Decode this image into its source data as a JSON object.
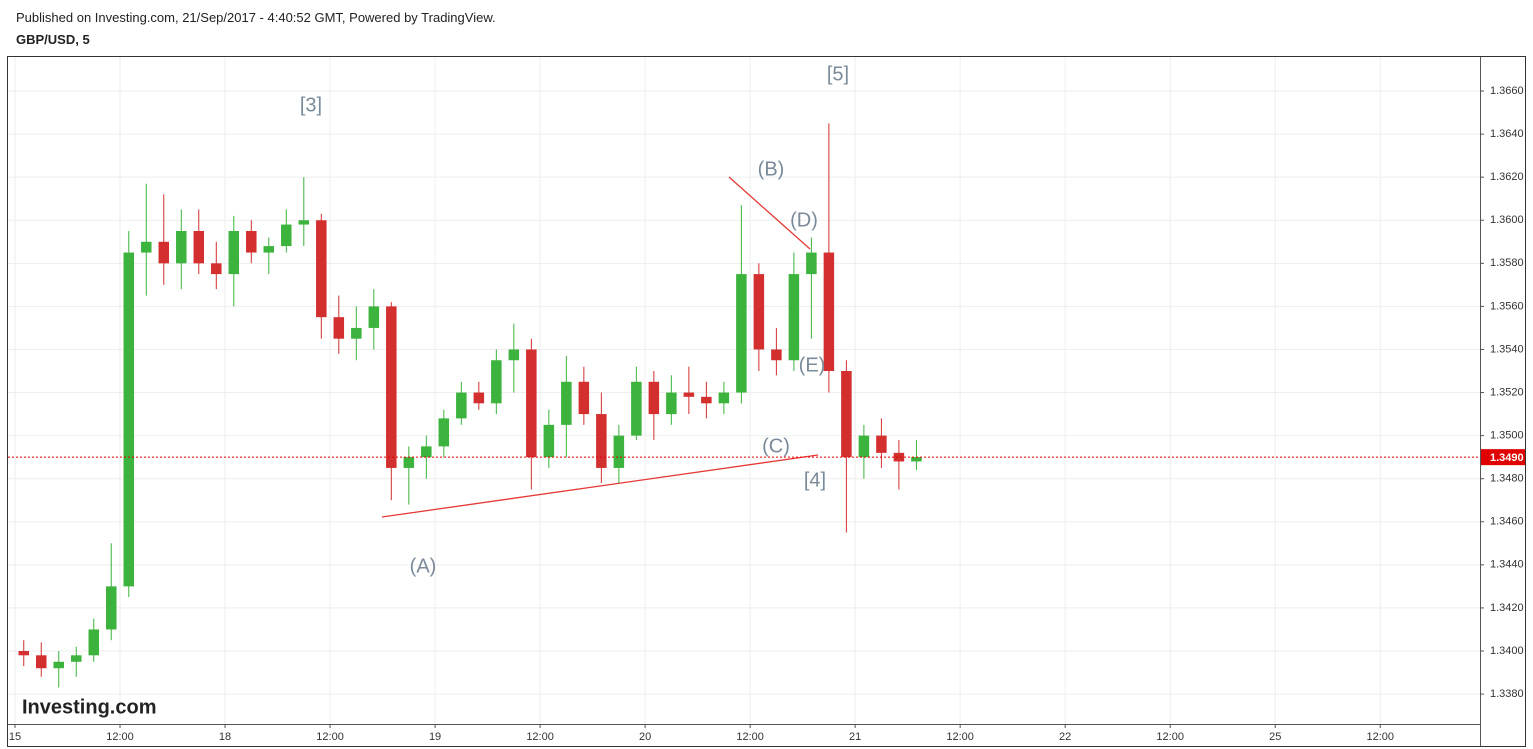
{
  "header": "Published on Investing.com, 21/Sep/2017 - 4:40:52 GMT, Powered by TradingView.",
  "chart_data": {
    "type": "candlestick",
    "title": "GBP/USD, 5",
    "watermark": "Investing.com",
    "up_color": "#3cb33c",
    "down_color": "#d32f2f",
    "grid": true,
    "x": [
      1,
      3,
      5,
      7,
      9,
      11,
      13,
      15,
      17,
      19,
      21,
      23,
      25,
      27,
      29,
      31,
      33,
      35,
      37,
      39,
      41,
      43,
      45,
      47,
      49,
      51,
      53,
      55,
      57,
      59,
      61,
      63,
      65,
      67,
      69,
      71,
      73,
      75,
      77,
      79,
      81,
      83,
      85,
      87,
      89,
      91,
      93,
      95,
      97,
      99,
      101,
      103
    ],
    "open": [
      1.34,
      1.3398,
      1.3392,
      1.3395,
      1.3398,
      1.341,
      1.343,
      1.3585,
      1.359,
      1.358,
      1.3595,
      1.358,
      1.3575,
      1.3595,
      1.3585,
      1.3588,
      1.3598,
      1.36,
      1.3555,
      1.3545,
      1.355,
      1.356,
      1.3485,
      1.349,
      1.3495,
      1.3508,
      1.352,
      1.3515,
      1.3535,
      1.354,
      1.349,
      1.3505,
      1.3525,
      1.351,
      1.3485,
      1.35,
      1.3525,
      1.351,
      1.352,
      1.3518,
      1.3515,
      1.352,
      1.3575,
      1.354,
      1.3535,
      1.3575,
      1.3585,
      1.353,
      1.349,
      1.35,
      1.3492,
      1.3488
    ],
    "high": [
      1.3405,
      1.3404,
      1.34,
      1.3402,
      1.3415,
      1.345,
      1.3595,
      1.3617,
      1.3612,
      1.3605,
      1.3605,
      1.359,
      1.3602,
      1.36,
      1.3592,
      1.3605,
      1.362,
      1.3603,
      1.3565,
      1.356,
      1.3568,
      1.3562,
      1.3495,
      1.35,
      1.3512,
      1.3525,
      1.3525,
      1.354,
      1.3552,
      1.3545,
      1.3512,
      1.3537,
      1.3532,
      1.352,
      1.3505,
      1.3532,
      1.353,
      1.3528,
      1.3532,
      1.3525,
      1.3525,
      1.3607,
      1.358,
      1.355,
      1.3585,
      1.3592,
      1.3645,
      1.3535,
      1.3505,
      1.3508,
      1.3498,
      1.3498
    ],
    "low": [
      1.3393,
      1.3388,
      1.3383,
      1.3388,
      1.3395,
      1.3405,
      1.3425,
      1.3565,
      1.357,
      1.3568,
      1.3575,
      1.3568,
      1.356,
      1.358,
      1.3575,
      1.3585,
      1.3588,
      1.3545,
      1.3538,
      1.3535,
      1.354,
      1.347,
      1.3468,
      1.348,
      1.349,
      1.3505,
      1.3512,
      1.351,
      1.352,
      1.3475,
      1.3485,
      1.349,
      1.3505,
      1.3478,
      1.3478,
      1.3498,
      1.3498,
      1.3505,
      1.351,
      1.3508,
      1.351,
      1.3515,
      1.353,
      1.3528,
      1.353,
      1.3545,
      1.352,
      1.3455,
      1.348,
      1.3485,
      1.3475,
      1.3484
    ],
    "close": [
      1.3398,
      1.3392,
      1.3395,
      1.3398,
      1.341,
      1.343,
      1.3585,
      1.359,
      1.358,
      1.3595,
      1.358,
      1.3575,
      1.3595,
      1.3585,
      1.3588,
      1.3598,
      1.36,
      1.3555,
      1.3545,
      1.355,
      1.356,
      1.3485,
      1.349,
      1.3495,
      1.3508,
      1.352,
      1.3515,
      1.3535,
      1.354,
      1.349,
      1.3505,
      1.3525,
      1.351,
      1.3485,
      1.35,
      1.3525,
      1.351,
      1.352,
      1.3518,
      1.3515,
      1.352,
      1.3575,
      1.354,
      1.3535,
      1.3575,
      1.3585,
      1.353,
      1.349,
      1.35,
      1.3492,
      1.3488,
      1.349
    ],
    "xlim": [
      -0.8,
      167.4
    ],
    "xticks": [
      {
        "value": 0,
        "label": "15"
      },
      {
        "value": 12,
        "label": "12:00"
      },
      {
        "value": 24,
        "label": "18"
      },
      {
        "value": 36,
        "label": "12:00"
      },
      {
        "value": 48,
        "label": "19"
      },
      {
        "value": 60,
        "label": "12:00"
      },
      {
        "value": 72,
        "label": "20"
      },
      {
        "value": 84,
        "label": "12:00"
      },
      {
        "value": 96,
        "label": "21"
      },
      {
        "value": 108,
        "label": "12:00"
      },
      {
        "value": 120,
        "label": "22"
      },
      {
        "value": 132,
        "label": "12:00"
      },
      {
        "value": 144,
        "label": "25"
      },
      {
        "value": 156,
        "label": "12:00"
      }
    ],
    "ylim": [
      1.33661,
      1.36758
    ],
    "yticks": [
      {
        "value": 1.338,
        "label": "1.3380"
      },
      {
        "value": 1.34,
        "label": "1.3400"
      },
      {
        "value": 1.342,
        "label": "1.3420"
      },
      {
        "value": 1.344,
        "label": "1.3440"
      },
      {
        "value": 1.346,
        "label": "1.3460"
      },
      {
        "value": 1.348,
        "label": "1.3480"
      },
      {
        "value": 1.35,
        "label": "1.3500"
      },
      {
        "value": 1.352,
        "label": "1.3520"
      },
      {
        "value": 1.354,
        "label": "1.3540"
      },
      {
        "value": 1.356,
        "label": "1.3560"
      },
      {
        "value": 1.358,
        "label": "1.3580"
      },
      {
        "value": 1.36,
        "label": "1.3600"
      },
      {
        "value": 1.362,
        "label": "1.3620"
      },
      {
        "value": 1.364,
        "label": "1.3640"
      },
      {
        "value": 1.366,
        "label": "1.3660"
      }
    ],
    "last_price": {
      "value": 1.349,
      "label": "1.3490"
    },
    "last_price_color": "#e00000",
    "annotations": [
      "[3]",
      "[5]",
      "(B)",
      "(D)",
      "(E)",
      "(C)",
      "[4]",
      "(A)"
    ]
  }
}
